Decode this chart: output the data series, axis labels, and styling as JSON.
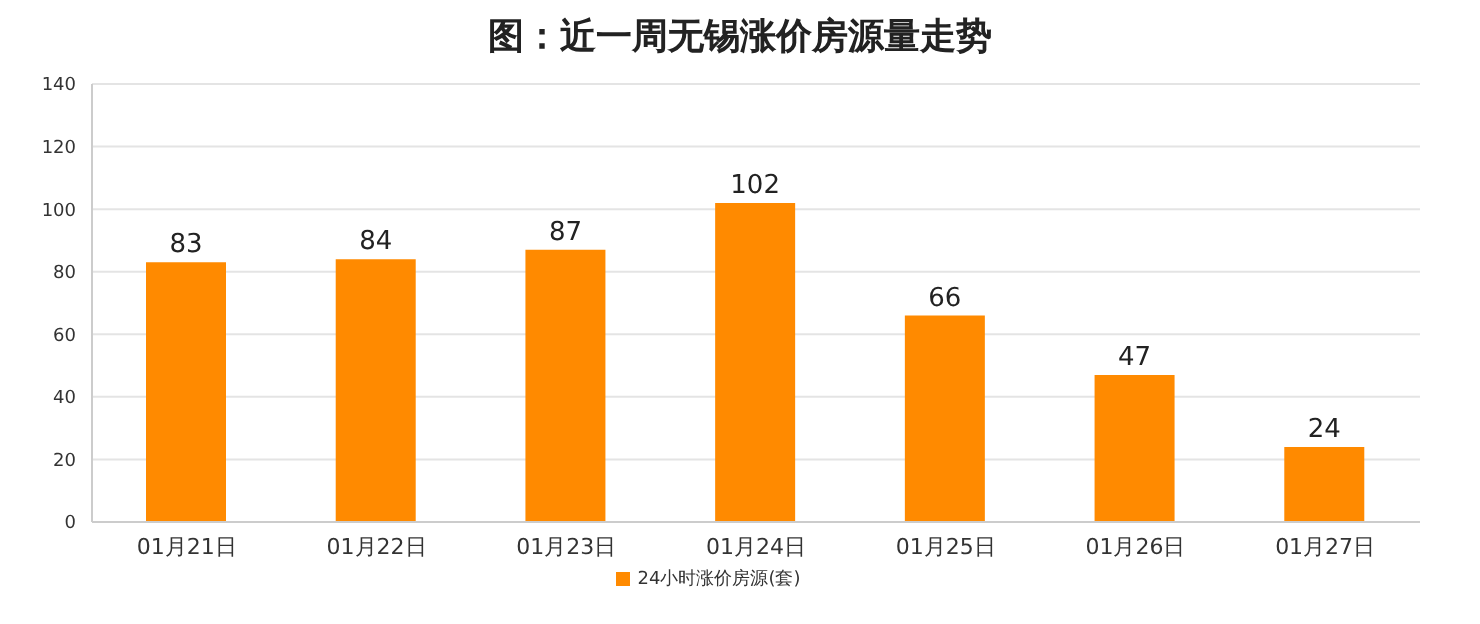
{
  "chart_data": {
    "type": "bar",
    "title": "图：近一周无锡涨价房源量走势",
    "categories": [
      "01月21日",
      "01月22日",
      "01月23日",
      "01月24日",
      "01月25日",
      "01月26日",
      "01月27日"
    ],
    "series": [
      {
        "name": "24小时涨价房源(套)",
        "color": "#ff8a00",
        "values": [
          83,
          84,
          87,
          102,
          66,
          47,
          24
        ]
      }
    ],
    "ylim": [
      0,
      140
    ],
    "yticks": [
      0,
      20,
      40,
      60,
      80,
      100,
      120,
      140
    ],
    "grid": "y",
    "legend": "bottom",
    "data_labels": true
  }
}
